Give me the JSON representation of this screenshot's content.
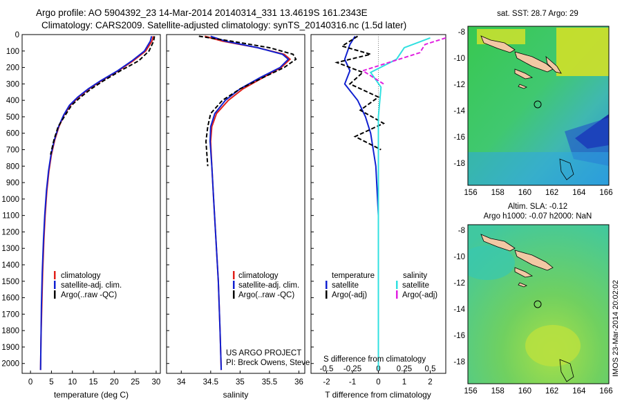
{
  "header": {
    "title_line1": "Argo profile: AO 5904392_23 14-Mar-2014 20140314_331 13.4619S 161.2343E",
    "title_line2": "Climatology: CARS2009. Satellite-adjusted climatology: synTS_20140316.nc (1.5d later)"
  },
  "colors": {
    "climatology": "#e0201a",
    "satellite": "#1020d0",
    "argo": "#000000",
    "satellite_sal": "#30e0e0",
    "argo_sal": "#e020e0"
  },
  "footer": {
    "project": "US ARGO PROJECT",
    "pi": "PI: Breck Owens, Steve Jayne, and P.E. Robbi",
    "imos": "IMOS 23-Mar-2014 20:02:02"
  },
  "chart_data": [
    {
      "type": "line",
      "xlabel": "temperature (deg C)",
      "ylabel": "",
      "xlim": [
        -2,
        31
      ],
      "ylim": [
        2060,
        0
      ],
      "xticks": [
        0,
        5,
        10,
        15,
        20,
        25,
        30
      ],
      "yticks": [
        0,
        100,
        200,
        300,
        400,
        500,
        600,
        700,
        800,
        900,
        1000,
        1100,
        1200,
        1300,
        1400,
        1500,
        1600,
        1700,
        1800,
        1900,
        2000
      ],
      "legend": [
        "climatology",
        "satellite-adj. clim.",
        "Argo(..raw -QC)"
      ],
      "series": [
        {
          "name": "climatology",
          "points": [
            [
              29.3,
              10
            ],
            [
              29.0,
              40
            ],
            [
              27.5,
              100
            ],
            [
              24.5,
              160
            ],
            [
              21,
              220
            ],
            [
              17,
              280
            ],
            [
              14,
              330
            ],
            [
              11.5,
              380
            ],
            [
              9.5,
              430
            ],
            [
              8,
              490
            ],
            [
              6.8,
              560
            ],
            [
              5.8,
              640
            ],
            [
              5.0,
              730
            ],
            [
              4.4,
              830
            ],
            [
              3.9,
              950
            ],
            [
              3.5,
              1100
            ],
            [
              3.2,
              1250
            ],
            [
              2.9,
              1450
            ],
            [
              2.7,
              1650
            ],
            [
              2.5,
              1850
            ],
            [
              2.4,
              2040
            ]
          ]
        },
        {
          "name": "satellite-adj. clim.",
          "points": [
            [
              28.9,
              10
            ],
            [
              28.6,
              40
            ],
            [
              27.2,
              100
            ],
            [
              24.2,
              160
            ],
            [
              20.8,
              220
            ],
            [
              16.8,
              280
            ],
            [
              13.8,
              330
            ],
            [
              11.3,
              380
            ],
            [
              9.3,
              430
            ],
            [
              7.9,
              490
            ],
            [
              6.7,
              560
            ],
            [
              5.7,
              640
            ],
            [
              4.9,
              730
            ],
            [
              4.3,
              830
            ],
            [
              3.8,
              950
            ],
            [
              3.4,
              1100
            ],
            [
              3.1,
              1250
            ],
            [
              2.8,
              1450
            ],
            [
              2.6,
              1650
            ],
            [
              2.5,
              1850
            ],
            [
              2.4,
              2040
            ]
          ]
        },
        {
          "name": "Argo(..raw -QC)",
          "points": [
            [
              29.6,
              10
            ],
            [
              29.4,
              40
            ],
            [
              28.3,
              100
            ],
            [
              25.8,
              160
            ],
            [
              21.5,
              220
            ],
            [
              17.5,
              280
            ],
            [
              14.5,
              330
            ],
            [
              12,
              380
            ],
            [
              9.8,
              430
            ],
            [
              8.3,
              490
            ],
            [
              6.6,
              560
            ],
            [
              5.6,
              640
            ],
            [
              4.8,
              730
            ]
          ]
        }
      ]
    },
    {
      "type": "line",
      "xlabel": "salinity",
      "ylabel": "",
      "xlim": [
        33.75,
        36.1
      ],
      "ylim": [
        2060,
        0
      ],
      "xticks": [
        34,
        34.5,
        35,
        35.5,
        36
      ],
      "legend": [
        "climatology",
        "satellite-adj. clim.",
        "Argo(..raw -QC)"
      ],
      "series": [
        {
          "name": "climatology",
          "points": [
            [
              34.4,
              10
            ],
            [
              34.7,
              40
            ],
            [
              35.3,
              80
            ],
            [
              35.75,
              120
            ],
            [
              35.85,
              150
            ],
            [
              35.7,
              200
            ],
            [
              35.4,
              260
            ],
            [
              35.05,
              330
            ],
            [
              34.8,
              400
            ],
            [
              34.6,
              480
            ],
            [
              34.52,
              560
            ],
            [
              34.5,
              650
            ],
            [
              34.52,
              800
            ],
            [
              34.55,
              1000
            ],
            [
              34.59,
              1250
            ],
            [
              34.63,
              1500
            ],
            [
              34.66,
              1800
            ],
            [
              34.68,
              2040
            ]
          ]
        },
        {
          "name": "satellite-adj. clim.",
          "points": [
            [
              34.5,
              10
            ],
            [
              34.75,
              40
            ],
            [
              35.3,
              80
            ],
            [
              35.72,
              120
            ],
            [
              35.82,
              150
            ],
            [
              35.68,
              200
            ],
            [
              35.35,
              260
            ],
            [
              35.0,
              330
            ],
            [
              34.75,
              400
            ],
            [
              34.57,
              480
            ],
            [
              34.5,
              560
            ],
            [
              34.49,
              650
            ],
            [
              34.52,
              800
            ],
            [
              34.55,
              1000
            ],
            [
              34.59,
              1250
            ],
            [
              34.63,
              1500
            ],
            [
              34.66,
              1800
            ],
            [
              34.68,
              2040
            ]
          ]
        },
        {
          "name": "Argo(..raw -QC)",
          "points": [
            [
              34.3,
              10
            ],
            [
              34.85,
              40
            ],
            [
              35.5,
              80
            ],
            [
              35.9,
              120
            ],
            [
              35.95,
              150
            ],
            [
              35.75,
              200
            ],
            [
              35.4,
              260
            ],
            [
              35.0,
              330
            ],
            [
              34.7,
              400
            ],
            [
              34.5,
              480
            ],
            [
              34.45,
              560
            ],
            [
              34.42,
              650
            ],
            [
              34.45,
              800
            ]
          ]
        }
      ]
    },
    {
      "type": "line",
      "xlabel": "T difference from climatology",
      "xlabel2": "S difference from climatology",
      "xlim": [
        -2.6,
        2.6
      ],
      "ylim": [
        2060,
        0
      ],
      "xticks": [
        -2,
        -1,
        0,
        1,
        2
      ],
      "xticks_s": [
        "-0.5",
        "-0.25",
        "0",
        "0.25",
        "0.5"
      ],
      "legend_headers": [
        "temperature",
        "salinity"
      ],
      "legend": [
        "satellite",
        "Argo(-adj)",
        "satellite",
        "Argo(-adj)"
      ],
      "series": [
        {
          "name": "temperature satellite",
          "points": [
            [
              -0.9,
              10
            ],
            [
              -1.1,
              60
            ],
            [
              -1.3,
              150
            ],
            [
              -1.1,
              220
            ],
            [
              -1.3,
              300
            ],
            [
              -0.8,
              400
            ],
            [
              -0.5,
              500
            ],
            [
              -0.3,
              600
            ],
            [
              -0.1,
              800
            ],
            [
              0,
              1100
            ],
            [
              0,
              2040
            ]
          ]
        },
        {
          "name": "temperature Argo(-adj)",
          "points": [
            [
              -0.8,
              10
            ],
            [
              -1.4,
              70
            ],
            [
              -0.3,
              120
            ],
            [
              -1.6,
              170
            ],
            [
              -0.6,
              230
            ],
            [
              -1.1,
              300
            ],
            [
              0,
              380
            ],
            [
              -0.7,
              460
            ],
            [
              0.2,
              540
            ],
            [
              -0.9,
              620
            ],
            [
              0.1,
              700
            ]
          ]
        },
        {
          "name": "salinity satellite",
          "points": [
            [
              2.0,
              20
            ],
            [
              1.0,
              80
            ],
            [
              0.7,
              150
            ],
            [
              -0.3,
              230
            ],
            [
              0.1,
              320
            ],
            [
              0,
              500
            ],
            [
              0,
              2040
            ]
          ]
        },
        {
          "name": "salinity Argo(-adj)",
          "points": [
            [
              2.6,
              20
            ],
            [
              1.8,
              60
            ],
            [
              1.6,
              110
            ],
            [
              0.8,
              150
            ],
            [
              -0.6,
              220
            ],
            [
              0.2,
              300
            ]
          ]
        }
      ]
    },
    {
      "type": "heatmap",
      "title": "sat. SST: 28.7 Argo: 29",
      "xticks": [
        "156",
        "158",
        "160",
        "162",
        "164",
        "166"
      ],
      "yticks": [
        "-8",
        "-10",
        "-12",
        "-14",
        "-16",
        "-18"
      ]
    },
    {
      "type": "heatmap",
      "title": "Altim. SLA: -0.12",
      "subtitle": "Argo h1000: -0.07 h2000: NaN",
      "xticks": [
        "156",
        "158",
        "160",
        "162",
        "164",
        "166"
      ],
      "yticks": [
        "-8",
        "-10",
        "-12",
        "-14",
        "-16",
        "-18"
      ]
    }
  ]
}
